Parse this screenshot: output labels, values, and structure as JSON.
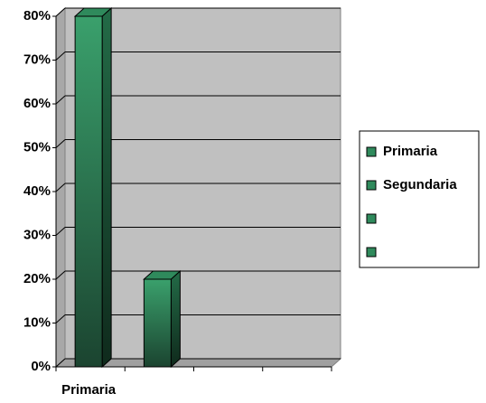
{
  "chart_data": {
    "type": "bar3d",
    "categories": [
      "Primaria",
      null,
      null,
      null
    ],
    "values": [
      80,
      20,
      null,
      null
    ],
    "color": "#2f8a5c",
    "legend_entries": [
      "Primaria",
      "Segundaria",
      null,
      null
    ],
    "ylim": [
      0,
      80
    ],
    "yticks": [
      {
        "value": 0,
        "label": "0%"
      },
      {
        "value": 10,
        "label": "10%"
      },
      {
        "value": 20,
        "label": "20%"
      },
      {
        "value": 30,
        "label": "30%"
      },
      {
        "value": 40,
        "label": "40%"
      },
      {
        "value": 50,
        "label": "50%"
      },
      {
        "value": 60,
        "label": "60%"
      },
      {
        "value": 70,
        "label": "70%"
      },
      {
        "value": 80,
        "label": "80%"
      }
    ],
    "grid": true,
    "legend": "right"
  }
}
